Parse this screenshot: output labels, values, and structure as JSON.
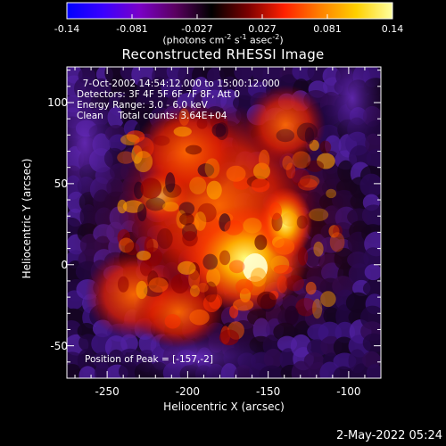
{
  "colorbar": {
    "ticks": [
      "-0.14",
      "-0.081",
      "-0.027",
      "0.027",
      "0.081",
      "0.14"
    ],
    "units_text": "(photons cm",
    "units_exp1": "-2",
    "units_mid": " s",
    "units_exp2": "-1",
    "units_mid2": " asec",
    "units_exp3": "-2",
    "units_end": ")",
    "gradient_colors": [
      "#0000ff",
      "#3a00ff",
      "#7a00c8",
      "#5a0060",
      "#000000",
      "#7a0000",
      "#ff2000",
      "#ff8000",
      "#ffd000",
      "#ffffa0"
    ]
  },
  "header": {
    "title": "Reconstructed RHESSI Image"
  },
  "info": {
    "line1": "  7-Oct-2002 14:54:12.000 to 15:00:12.000",
    "line2": "Detectors: 3F 4F 5F 6F 7F 8F, Att 0",
    "line3": "Energy Range: 3.0 - 6.0 keV",
    "line4": "Clean     Total counts: 3.64E+04",
    "peak": "Position of Peak = [-157,-2]"
  },
  "chart_data": {
    "type": "heatmap",
    "title": "Reconstructed RHESSI Image",
    "xlabel": "Heliocentric X (arcsec)",
    "ylabel": "Heliocentric Y (arcsec)",
    "xlim": [
      -275,
      -80
    ],
    "ylim": [
      -70,
      122
    ],
    "x_ticks": [
      "-250",
      "-200",
      "-150",
      "-100"
    ],
    "x_tick_values": [
      -250,
      -200,
      -150,
      -100
    ],
    "y_ticks": [
      "100",
      "50",
      "0",
      "-50"
    ],
    "y_tick_values": [
      100,
      50,
      0,
      -50
    ],
    "colorbar_range": [
      -0.14,
      0.14
    ],
    "peak_position": [
      -157,
      -2
    ]
  },
  "footer": {
    "date": "2-May-2022 05:24"
  }
}
